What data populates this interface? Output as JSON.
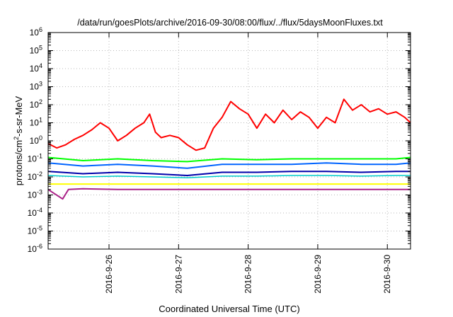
{
  "chart_data": {
    "type": "line",
    "title": "/data/run/goesPlots/archive/2016-09-30/08:00/flux/../flux/5daysMoonFluxes.txt",
    "xlabel": "Coordinated Universal Time (UTC)",
    "ylabel": {
      "base": "protons/cm",
      "exp": "2",
      "rest": "-s-sr-MeV"
    },
    "y_scale": "log",
    "ylim": [
      1e-06,
      1000000
    ],
    "xlim": [
      "2016-09-25 03:00",
      "2016-09-30 08:00"
    ],
    "grid": true,
    "legend": "none",
    "y_ticks": [
      {
        "value": 1e-06,
        "base": "10",
        "exp": "-6"
      },
      {
        "value": 1e-05,
        "base": "10",
        "exp": "-5"
      },
      {
        "value": 0.0001,
        "base": "10",
        "exp": "-4"
      },
      {
        "value": 0.001,
        "base": "10",
        "exp": "-3"
      },
      {
        "value": 0.01,
        "base": "10",
        "exp": "-2"
      },
      {
        "value": 0.1,
        "base": "10",
        "exp": "-1"
      },
      {
        "value": 1,
        "base": "10",
        "exp": "0"
      },
      {
        "value": 10,
        "base": "10",
        "exp": "1"
      },
      {
        "value": 100,
        "base": "10",
        "exp": "2"
      },
      {
        "value": 1000,
        "base": "10",
        "exp": "3"
      },
      {
        "value": 10000,
        "base": "10",
        "exp": "4"
      },
      {
        "value": 100000,
        "base": "10",
        "exp": "5"
      },
      {
        "value": 1000000,
        "base": "10",
        "exp": "6"
      }
    ],
    "x_ticks": [
      {
        "date": "2016-09-26",
        "label": "2016-9-26"
      },
      {
        "date": "2016-09-27",
        "label": "2016-9-27"
      },
      {
        "date": "2016-09-28",
        "label": "2016-9-28"
      },
      {
        "date": "2016-09-29",
        "label": "2016-9-29"
      },
      {
        "date": "2016-09-30",
        "label": "2016-9-30"
      }
    ],
    "series": [
      {
        "color": "#ff0000",
        "width": 2,
        "points": [
          [
            "2016-09-25 03:00",
            0.7
          ],
          [
            "2016-09-25 06:00",
            0.4
          ],
          [
            "2016-09-25 09:00",
            0.6
          ],
          [
            "2016-09-25 12:00",
            1.2
          ],
          [
            "2016-09-25 15:00",
            2.0
          ],
          [
            "2016-09-25 18:00",
            4.0
          ],
          [
            "2016-09-25 21:00",
            10
          ],
          [
            "2016-09-26 00:00",
            5.0
          ],
          [
            "2016-09-26 03:00",
            1.0
          ],
          [
            "2016-09-26 06:00",
            2.0
          ],
          [
            "2016-09-26 09:00",
            5.0
          ],
          [
            "2016-09-26 12:00",
            10
          ],
          [
            "2016-09-26 14:00",
            30
          ],
          [
            "2016-09-26 16:00",
            3.0
          ],
          [
            "2016-09-26 18:00",
            1.5
          ],
          [
            "2016-09-26 21:00",
            2.0
          ],
          [
            "2016-09-27 00:00",
            1.5
          ],
          [
            "2016-09-27 03:00",
            0.6
          ],
          [
            "2016-09-27 06:00",
            0.3
          ],
          [
            "2016-09-27 09:00",
            0.4
          ],
          [
            "2016-09-27 12:00",
            5.0
          ],
          [
            "2016-09-27 15:00",
            20
          ],
          [
            "2016-09-27 18:00",
            150
          ],
          [
            "2016-09-27 21:00",
            60
          ],
          [
            "2016-09-28 00:00",
            30
          ],
          [
            "2016-09-28 03:00",
            5.0
          ],
          [
            "2016-09-28 06:00",
            30
          ],
          [
            "2016-09-28 09:00",
            10
          ],
          [
            "2016-09-28 12:00",
            50
          ],
          [
            "2016-09-28 15:00",
            15
          ],
          [
            "2016-09-28 18:00",
            40
          ],
          [
            "2016-09-28 21:00",
            20
          ],
          [
            "2016-09-29 00:00",
            5.0
          ],
          [
            "2016-09-29 03:00",
            20
          ],
          [
            "2016-09-29 06:00",
            10
          ],
          [
            "2016-09-29 09:00",
            200
          ],
          [
            "2016-09-29 12:00",
            50
          ],
          [
            "2016-09-29 15:00",
            100
          ],
          [
            "2016-09-29 18:00",
            40
          ],
          [
            "2016-09-29 21:00",
            60
          ],
          [
            "2016-09-30 00:00",
            30
          ],
          [
            "2016-09-30 03:00",
            40
          ],
          [
            "2016-09-30 06:00",
            20
          ],
          [
            "2016-09-30 08:00",
            10
          ]
        ]
      },
      {
        "color": "#00ff00",
        "width": 2,
        "points": [
          [
            "2016-09-25 03:00",
            0.12
          ],
          [
            "2016-09-25 15:00",
            0.08
          ],
          [
            "2016-09-26 03:00",
            0.1
          ],
          [
            "2016-09-26 15:00",
            0.08
          ],
          [
            "2016-09-27 03:00",
            0.07
          ],
          [
            "2016-09-27 15:00",
            0.1
          ],
          [
            "2016-09-28 03:00",
            0.09
          ],
          [
            "2016-09-28 15:00",
            0.1
          ],
          [
            "2016-09-29 03:00",
            0.1
          ],
          [
            "2016-09-29 15:00",
            0.1
          ],
          [
            "2016-09-30 03:00",
            0.1
          ],
          [
            "2016-09-30 08:00",
            0.12
          ]
        ]
      },
      {
        "color": "#0064ff",
        "width": 2,
        "points": [
          [
            "2016-09-25 03:00",
            0.06
          ],
          [
            "2016-09-25 15:00",
            0.04
          ],
          [
            "2016-09-26 03:00",
            0.05
          ],
          [
            "2016-09-26 15:00",
            0.04
          ],
          [
            "2016-09-27 03:00",
            0.03
          ],
          [
            "2016-09-27 15:00",
            0.05
          ],
          [
            "2016-09-28 03:00",
            0.05
          ],
          [
            "2016-09-28 15:00",
            0.05
          ],
          [
            "2016-09-29 03:00",
            0.06
          ],
          [
            "2016-09-29 15:00",
            0.05
          ],
          [
            "2016-09-30 03:00",
            0.05
          ],
          [
            "2016-09-30 08:00",
            0.06
          ]
        ]
      },
      {
        "color": "#0000aa",
        "width": 2,
        "points": [
          [
            "2016-09-25 03:00",
            0.02
          ],
          [
            "2016-09-25 15:00",
            0.015
          ],
          [
            "2016-09-26 03:00",
            0.018
          ],
          [
            "2016-09-26 15:00",
            0.015
          ],
          [
            "2016-09-27 03:00",
            0.012
          ],
          [
            "2016-09-27 15:00",
            0.018
          ],
          [
            "2016-09-28 03:00",
            0.018
          ],
          [
            "2016-09-28 15:00",
            0.02
          ],
          [
            "2016-09-29 03:00",
            0.02
          ],
          [
            "2016-09-29 15:00",
            0.018
          ],
          [
            "2016-09-30 03:00",
            0.02
          ],
          [
            "2016-09-30 08:00",
            0.02
          ]
        ]
      },
      {
        "color": "#00cccc",
        "width": 1.5,
        "points": [
          [
            "2016-09-25 03:00",
            0.012
          ],
          [
            "2016-09-25 15:00",
            0.01
          ],
          [
            "2016-09-26 03:00",
            0.011
          ],
          [
            "2016-09-26 15:00",
            0.01
          ],
          [
            "2016-09-27 03:00",
            0.009
          ],
          [
            "2016-09-27 15:00",
            0.011
          ],
          [
            "2016-09-28 03:00",
            0.011
          ],
          [
            "2016-09-28 15:00",
            0.012
          ],
          [
            "2016-09-29 03:00",
            0.012
          ],
          [
            "2016-09-29 15:00",
            0.011
          ],
          [
            "2016-09-30 03:00",
            0.012
          ],
          [
            "2016-09-30 08:00",
            0.012
          ]
        ]
      },
      {
        "color": "#ffff00",
        "width": 2,
        "points": [
          [
            "2016-09-25 03:00",
            0.004
          ],
          [
            "2016-09-25 15:00",
            0.004
          ],
          [
            "2016-09-26 03:00",
            0.004
          ],
          [
            "2016-09-26 15:00",
            0.004
          ],
          [
            "2016-09-27 03:00",
            0.004
          ],
          [
            "2016-09-27 15:00",
            0.004
          ],
          [
            "2016-09-28 03:00",
            0.004
          ],
          [
            "2016-09-28 15:00",
            0.004
          ],
          [
            "2016-09-29 03:00",
            0.004
          ],
          [
            "2016-09-29 15:00",
            0.004
          ],
          [
            "2016-09-30 03:00",
            0.004
          ],
          [
            "2016-09-30 08:00",
            0.004
          ]
        ]
      },
      {
        "color": "#aa2288",
        "width": 2,
        "points": [
          [
            "2016-09-25 03:00",
            0.002
          ],
          [
            "2016-09-25 08:00",
            0.0006
          ],
          [
            "2016-09-25 10:00",
            0.002
          ],
          [
            "2016-09-25 15:00",
            0.0022
          ],
          [
            "2016-09-26 03:00",
            0.002
          ],
          [
            "2016-09-26 15:00",
            0.002
          ],
          [
            "2016-09-27 03:00",
            0.002
          ],
          [
            "2016-09-27 15:00",
            0.002
          ],
          [
            "2016-09-28 03:00",
            0.002
          ],
          [
            "2016-09-28 15:00",
            0.002
          ],
          [
            "2016-09-29 03:00",
            0.002
          ],
          [
            "2016-09-29 15:00",
            0.002
          ],
          [
            "2016-09-30 03:00",
            0.002
          ],
          [
            "2016-09-30 08:00",
            0.002
          ]
        ]
      }
    ]
  }
}
